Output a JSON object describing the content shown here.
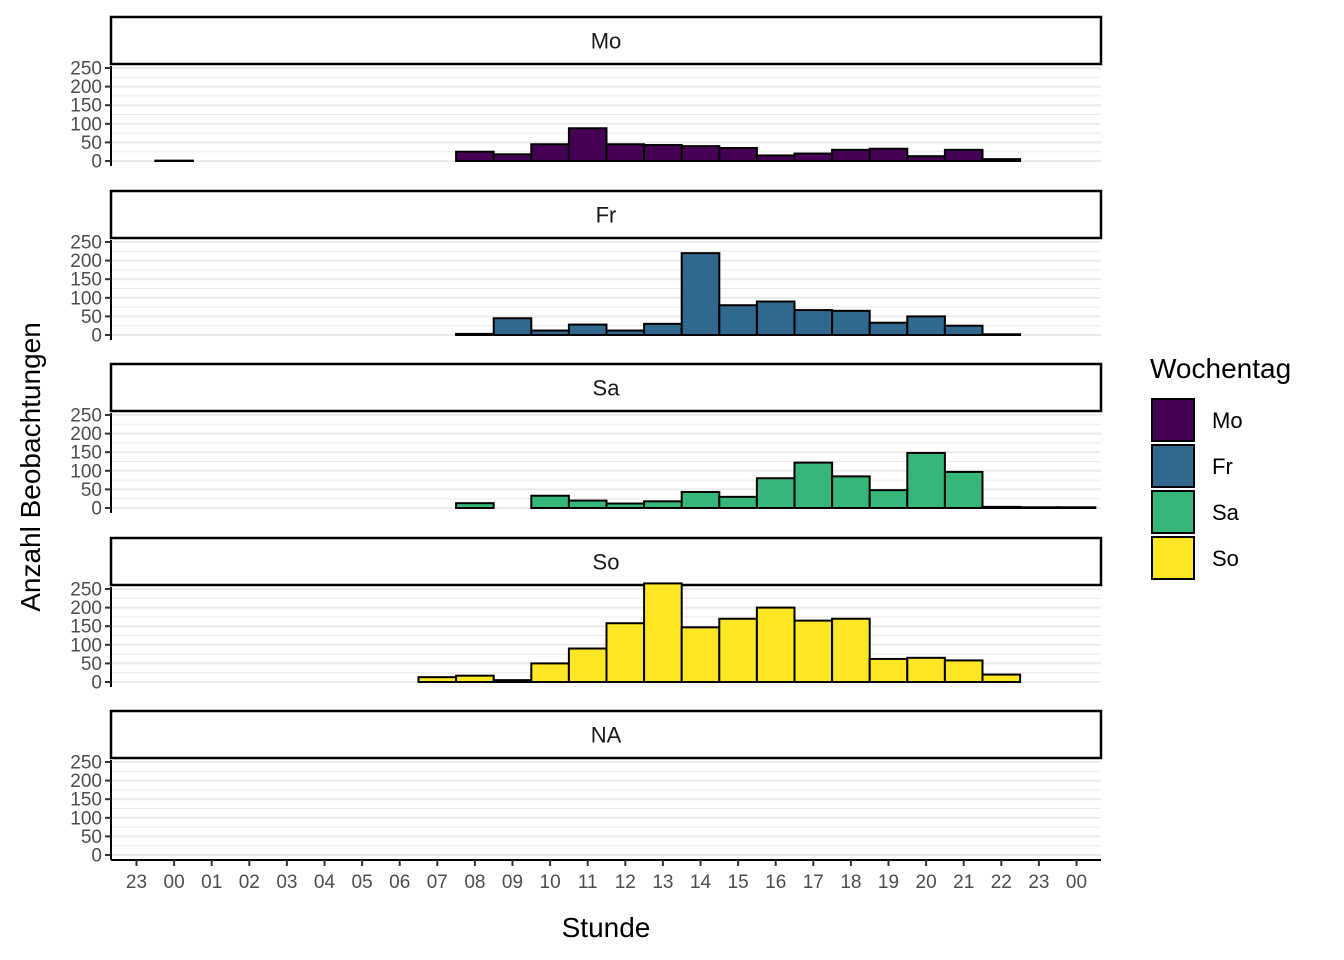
{
  "chart_data": {
    "type": "bar",
    "chart_subtype": "faceted histogram",
    "xlabel": "Stunde",
    "ylabel": "Anzahl Beobachtungen",
    "x_tick_labels": [
      "23",
      "00",
      "01",
      "02",
      "03",
      "04",
      "05",
      "06",
      "07",
      "08",
      "09",
      "10",
      "11",
      "12",
      "13",
      "14",
      "15",
      "16",
      "17",
      "18",
      "19",
      "20",
      "21",
      "22",
      "23",
      "00"
    ],
    "categories": [
      "23",
      "00",
      "01",
      "02",
      "03",
      "04",
      "05",
      "06",
      "07",
      "08",
      "09",
      "10",
      "11",
      "12",
      "13",
      "14",
      "15",
      "16",
      "17",
      "18",
      "19",
      "20",
      "21",
      "22",
      "23"
    ],
    "y_ticks": [
      0,
      50,
      100,
      150,
      200,
      250
    ],
    "ylim": [
      0,
      275
    ],
    "grid": "horizontal major and minor",
    "legend": {
      "title": "Wochentag",
      "position": "right",
      "entries": [
        {
          "label": "Mo",
          "color": "#440154"
        },
        {
          "label": "Fr",
          "color": "#31688E"
        },
        {
          "label": "Sa",
          "color": "#35B779"
        },
        {
          "label": "So",
          "color": "#FDE725"
        }
      ]
    },
    "series": [
      {
        "name": "Mo",
        "color": "#440154",
        "values": [
          1,
          0,
          0,
          0,
          0,
          0,
          0,
          0,
          25,
          18,
          45,
          88,
          45,
          43,
          40,
          35,
          15,
          20,
          30,
          33,
          13,
          30,
          5,
          0,
          0
        ]
      },
      {
        "name": "Fr",
        "color": "#31688E",
        "values": [
          0,
          0,
          0,
          0,
          0,
          0,
          0,
          0,
          3,
          45,
          12,
          28,
          12,
          30,
          220,
          80,
          90,
          67,
          65,
          33,
          50,
          25,
          2,
          0,
          0
        ]
      },
      {
        "name": "Sa",
        "color": "#35B779",
        "values": [
          0,
          0,
          0,
          0,
          0,
          0,
          0,
          0,
          13,
          0,
          33,
          20,
          12,
          18,
          43,
          30,
          80,
          122,
          85,
          48,
          148,
          97,
          3,
          2,
          2
        ]
      },
      {
        "name": "So",
        "color": "#FDE725",
        "values": [
          0,
          0,
          0,
          0,
          0,
          0,
          0,
          13,
          17,
          5,
          50,
          90,
          158,
          265,
          147,
          170,
          200,
          165,
          170,
          62,
          65,
          58,
          20,
          0,
          0
        ]
      },
      {
        "name": "NA",
        "color": "#808080",
        "values": [
          0,
          0,
          0,
          0,
          0,
          0,
          0,
          0,
          0,
          0,
          0,
          0,
          0,
          0,
          0,
          0,
          0,
          0,
          0,
          0,
          0,
          0,
          0,
          0,
          0
        ]
      }
    ]
  }
}
